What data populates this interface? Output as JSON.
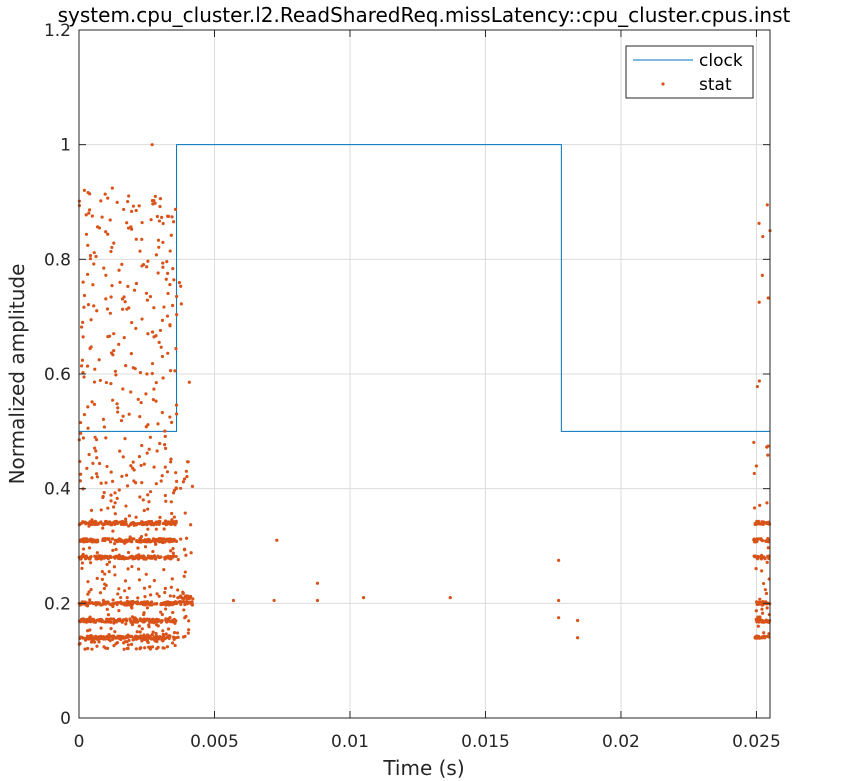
{
  "chart_data": {
    "type": "line",
    "title": "system.cpu_cluster.l2.ReadSharedReq.missLatency::cpu_cluster.cpus.inst",
    "xlabel": "Time (s)",
    "ylabel": "Normalized amplitude",
    "xlim": [
      0,
      0.0255
    ],
    "ylim": [
      0,
      1.2
    ],
    "x_ticks": [
      0,
      0.005,
      0.01,
      0.015,
      0.02,
      0.025
    ],
    "x_tick_labels": [
      "0",
      "0.005",
      "0.01",
      "0.015",
      "0.02",
      "0.025"
    ],
    "y_ticks": [
      0,
      0.2,
      0.4,
      0.6,
      0.8,
      1,
      1.2
    ],
    "y_tick_labels": [
      "0",
      "0.2",
      "0.4",
      "0.6",
      "0.8",
      "1",
      "1.2"
    ],
    "grid": true,
    "legend_position": "top-right",
    "series": [
      {
        "name": "clock",
        "kind": "step-line",
        "color": "#0072BD",
        "x": [
          0,
          0.0036,
          0.0036,
          0.0178,
          0.0178,
          0.0255
        ],
        "y": [
          0.5,
          0.5,
          1,
          1,
          0.5,
          0.5
        ]
      },
      {
        "name": "stat",
        "kind": "scatter",
        "color": "#D95319",
        "clusters": [
          {
            "x_range": [
              0,
              0.0036
            ],
            "band_levels": [
              0.14,
              0.17,
              0.2,
              0.28,
              0.31,
              0.34
            ],
            "spread": [
              0.12,
              0.93
            ]
          },
          {
            "x_range": [
              0.0036,
              0.0042
            ],
            "band_levels": [
              0.2,
              0.21
            ],
            "spread": [
              0.14,
              0.78
            ]
          },
          {
            "x_range": [
              0.0249,
              0.0255
            ],
            "band_levels": [
              0.14,
              0.17,
              0.2,
              0.28,
              0.31,
              0.34
            ],
            "spread": [
              0.14,
              0.9
            ]
          }
        ],
        "points": [
          {
            "x": 0.0027,
            "y": 1.0
          },
          {
            "x": 0.0057,
            "y": 0.205
          },
          {
            "x": 0.0072,
            "y": 0.205
          },
          {
            "x": 0.0073,
            "y": 0.31
          },
          {
            "x": 0.0088,
            "y": 0.205
          },
          {
            "x": 0.0088,
            "y": 0.235
          },
          {
            "x": 0.0105,
            "y": 0.21
          },
          {
            "x": 0.0137,
            "y": 0.21
          },
          {
            "x": 0.0177,
            "y": 0.275
          },
          {
            "x": 0.0177,
            "y": 0.205
          },
          {
            "x": 0.0177,
            "y": 0.175
          },
          {
            "x": 0.0184,
            "y": 0.17
          },
          {
            "x": 0.0184,
            "y": 0.14
          },
          {
            "x": 0.0254,
            "y": 0.895
          },
          {
            "x": 0.0255,
            "y": 0.85
          }
        ]
      }
    ]
  }
}
